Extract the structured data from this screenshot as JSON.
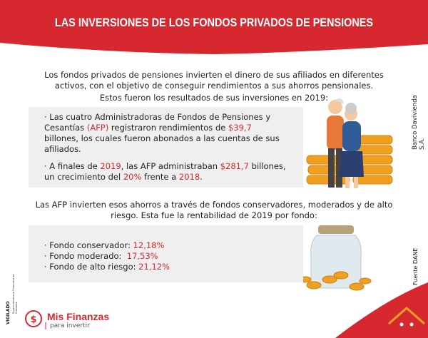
{
  "header": {
    "title": "LAS INVERSIONES DE LOS FONDOS PRIVADOS DE PENSIONES"
  },
  "intro": "Los fondos privados de pensiones invierten el dinero de sus afiliados en diferentes activos, con el objetivo de conseguir rendimientos a sus ahorros pensionales.",
  "results_heading": "Estos fueron los resultados de sus inversiones en 2019:",
  "results": [
    [
      "· Las cuatro Administradoras de Fondos de Pensiones y Cesantías ",
      {
        "text": "(AFP)",
        "color": "#d7282f"
      },
      " registraron rendimientos de ",
      {
        "text": "$39,7",
        "color": "#d7282f"
      },
      " billones, los cuales fueron abonados a las cuentas de sus afiliados."
    ],
    [
      "· A finales de ",
      {
        "text": "2019",
        "color": "#d7282f"
      },
      ", las AFP administraban ",
      {
        "text": "$281,7",
        "color": "#d7282f"
      },
      " billones, un crecimiento del ",
      {
        "text": "20%",
        "color": "#d7282f"
      },
      " frente a ",
      {
        "text": "2018",
        "color": "#d7282f"
      },
      "."
    ]
  ],
  "funds_heading": "Las AFP invierten esos ahorros a través de fondos conservadores, moderados y de alto riesgo. Esta fue la rentabilidad de 2019 por fondo:",
  "funds": [
    [
      "· Fondo conservador: ",
      {
        "text": "12,18%",
        "color": "#d7282f"
      }
    ],
    [
      "· Fondo moderado:  ",
      {
        "text": "17,53%",
        "color": "#d7282f"
      }
    ],
    [
      "· Fondo de alto riesgo: ",
      {
        "text": "21,12%",
        "color": "#d7282f"
      }
    ]
  ],
  "side": {
    "bank": "Banco Davivienda S.A.",
    "source": "Fuente DANE",
    "vigilado": "VIGILADO",
    "regulator": "Superintendencia Financiera de Colombia"
  },
  "logo": {
    "name": "Mis Finanzas",
    "tagline": "para invertir"
  }
}
